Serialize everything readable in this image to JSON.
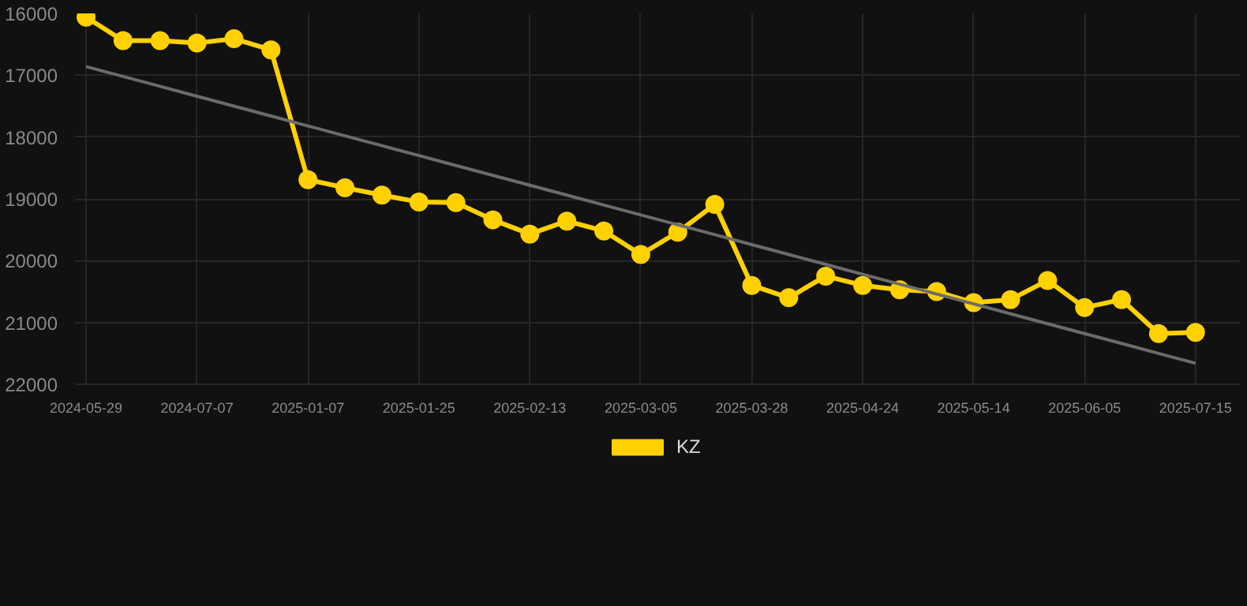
{
  "chart_data": {
    "type": "line",
    "categories": [
      "2024-05-29",
      null,
      null,
      "2024-07-07",
      null,
      null,
      "2025-01-07",
      null,
      null,
      "2025-01-25",
      null,
      null,
      "2025-02-13",
      null,
      null,
      "2025-03-05",
      null,
      null,
      "2025-03-28",
      null,
      null,
      "2025-04-24",
      null,
      null,
      "2025-05-14",
      null,
      null,
      "2025-06-05",
      null,
      null,
      "2025-07-15"
    ],
    "series": [
      {
        "name": "KZ",
        "color": "#ffd100",
        "marker": "circle",
        "values": [
          16060,
          16440,
          16440,
          16480,
          16410,
          16590,
          18690,
          18820,
          18940,
          19050,
          19060,
          19340,
          19570,
          19360,
          19520,
          19900,
          19540,
          19090,
          20400,
          20600,
          20250,
          20400,
          20470,
          20500,
          20680,
          20630,
          20320,
          20760,
          20630,
          21180,
          21160
        ]
      },
      {
        "type": "line",
        "color": "#6b6b6b",
        "marker": "none",
        "values": [
          16860,
          17020,
          17180,
          17340,
          17500,
          17660,
          17820,
          17980,
          18140,
          18300,
          18460,
          18620,
          18780,
          18940,
          19100,
          19260,
          19420,
          19580,
          19740,
          19900,
          20060,
          20220,
          20380,
          20540,
          20700,
          20860,
          21020,
          21180,
          21340,
          21500,
          21660
        ]
      }
    ],
    "ylim": [
      22000,
      16000
    ],
    "yticks": [
      16000,
      17000,
      18000,
      19000,
      20000,
      21000,
      22000
    ],
    "grid": true,
    "legend": "bottom"
  }
}
